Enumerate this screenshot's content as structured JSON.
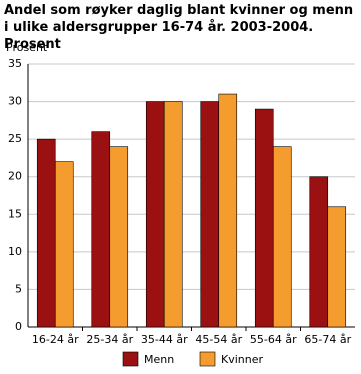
{
  "chart_data": {
    "type": "bar",
    "title": "Andel som røyker daglig blant kvinner og menn i ulike aldersgrupper 16-74 år. 2003-2004. Prosent",
    "y_label": "Prosent",
    "categories": [
      "16-24 år",
      "25-34 år",
      "35-44 år",
      "45-54 år",
      "55-64 år",
      "65-74 år"
    ],
    "series": [
      {
        "name": "Menn",
        "color": "#9b1111",
        "values": [
          25,
          26,
          30,
          30,
          29,
          20
        ]
      },
      {
        "name": "Kvinner",
        "color": "#f59c2e",
        "values": [
          22,
          24,
          30,
          31,
          24,
          16
        ]
      }
    ],
    "ylim": [
      0,
      35
    ],
    "yticks": [
      0,
      5,
      10,
      15,
      20,
      25,
      30,
      35
    ],
    "grid": true,
    "legend": "bottom"
  }
}
